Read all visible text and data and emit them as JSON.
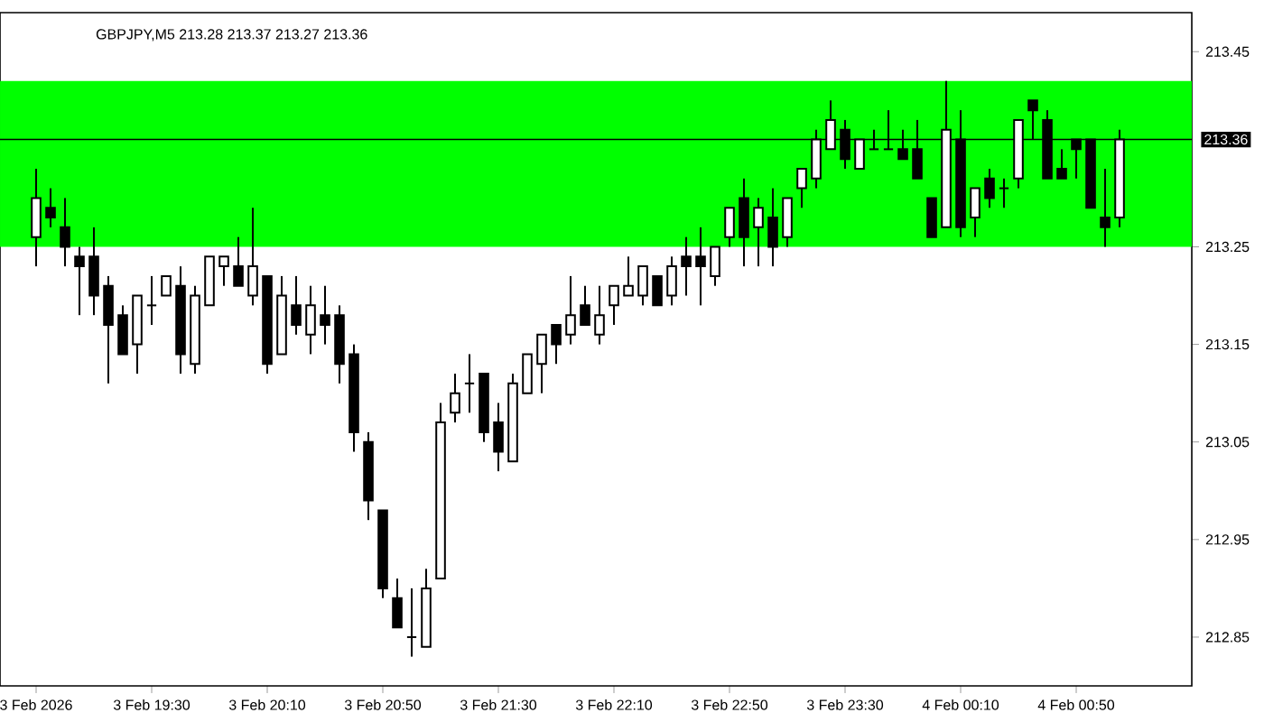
{
  "chart_data": {
    "type": "candlestick",
    "title": "GBPJPY,M5  213.28 213.37 213.27 213.36",
    "categories": [
      "3 Feb 2026",
      null,
      null,
      null,
      null,
      null,
      null,
      null,
      "3 Feb 19:30",
      null,
      null,
      null,
      null,
      null,
      null,
      null,
      "3 Feb 20:10",
      null,
      null,
      null,
      null,
      null,
      null,
      null,
      "3 Feb 20:50",
      null,
      null,
      null,
      null,
      null,
      null,
      null,
      "3 Feb 21:30",
      null,
      null,
      null,
      null,
      null,
      null,
      null,
      "3 Feb 22:10",
      null,
      null,
      null,
      null,
      null,
      null,
      null,
      "3 Feb 22:50",
      null,
      null,
      null,
      null,
      null,
      null,
      null,
      "3 Feb 23:30",
      null,
      null,
      null,
      null,
      null,
      null,
      null,
      "4 Feb 00:10",
      null,
      null,
      null,
      null,
      null,
      null,
      null,
      "4 Feb 00:50",
      null,
      null,
      null
    ],
    "ohlc": [
      [
        213.26,
        213.33,
        213.23,
        213.3
      ],
      [
        213.29,
        213.31,
        213.27,
        213.28
      ],
      [
        213.27,
        213.3,
        213.23,
        213.25
      ],
      [
        213.24,
        213.25,
        213.18,
        213.23
      ],
      [
        213.24,
        213.27,
        213.18,
        213.2
      ],
      [
        213.21,
        213.22,
        213.11,
        213.17
      ],
      [
        213.18,
        213.19,
        213.14,
        213.14
      ],
      [
        213.15,
        213.2,
        213.12,
        213.2
      ],
      [
        213.19,
        213.22,
        213.17,
        213.19
      ],
      [
        213.2,
        213.22,
        213.2,
        213.22
      ],
      [
        213.21,
        213.23,
        213.12,
        213.14
      ],
      [
        213.13,
        213.21,
        213.12,
        213.2
      ],
      [
        213.19,
        213.24,
        213.19,
        213.24
      ],
      [
        213.23,
        213.24,
        213.21,
        213.24
      ],
      [
        213.23,
        213.26,
        213.21,
        213.21
      ],
      [
        213.2,
        213.29,
        213.19,
        213.23
      ],
      [
        213.22,
        213.22,
        213.12,
        213.13
      ],
      [
        213.14,
        213.22,
        213.14,
        213.2
      ],
      [
        213.19,
        213.22,
        213.16,
        213.17
      ],
      [
        213.16,
        213.21,
        213.14,
        213.19
      ],
      [
        213.18,
        213.21,
        213.15,
        213.17
      ],
      [
        213.18,
        213.19,
        213.11,
        213.13
      ],
      [
        213.14,
        213.15,
        213.04,
        213.06
      ],
      [
        213.05,
        213.06,
        212.97,
        212.99
      ],
      [
        212.98,
        212.98,
        212.89,
        212.9
      ],
      [
        212.89,
        212.91,
        212.86,
        212.86
      ],
      [
        212.85,
        212.9,
        212.83,
        212.85
      ],
      [
        212.84,
        212.92,
        212.84,
        212.9
      ],
      [
        212.91,
        213.09,
        212.91,
        213.07
      ],
      [
        213.08,
        213.12,
        213.07,
        213.1
      ],
      [
        213.11,
        213.14,
        213.08,
        213.11
      ],
      [
        213.12,
        213.12,
        213.05,
        213.06
      ],
      [
        213.07,
        213.09,
        213.02,
        213.04
      ],
      [
        213.03,
        213.12,
        213.03,
        213.11
      ],
      [
        213.1,
        213.14,
        213.1,
        213.14
      ],
      [
        213.13,
        213.16,
        213.1,
        213.16
      ],
      [
        213.17,
        213.17,
        213.13,
        213.15
      ],
      [
        213.16,
        213.22,
        213.15,
        213.18
      ],
      [
        213.19,
        213.21,
        213.17,
        213.17
      ],
      [
        213.16,
        213.21,
        213.15,
        213.18
      ],
      [
        213.19,
        213.21,
        213.17,
        213.21
      ],
      [
        213.2,
        213.24,
        213.2,
        213.21
      ],
      [
        213.2,
        213.23,
        213.19,
        213.23
      ],
      [
        213.22,
        213.22,
        213.19,
        213.19
      ],
      [
        213.2,
        213.24,
        213.19,
        213.23
      ],
      [
        213.24,
        213.26,
        213.2,
        213.23
      ],
      [
        213.24,
        213.27,
        213.19,
        213.23
      ],
      [
        213.22,
        213.25,
        213.21,
        213.25
      ],
      [
        213.26,
        213.29,
        213.25,
        213.29
      ],
      [
        213.3,
        213.32,
        213.23,
        213.26
      ],
      [
        213.27,
        213.3,
        213.23,
        213.29
      ],
      [
        213.28,
        213.31,
        213.23,
        213.25
      ],
      [
        213.26,
        213.3,
        213.25,
        213.3
      ],
      [
        213.31,
        213.33,
        213.29,
        213.33
      ],
      [
        213.32,
        213.37,
        213.31,
        213.36
      ],
      [
        213.35,
        213.4,
        213.35,
        213.38
      ],
      [
        213.37,
        213.38,
        213.33,
        213.34
      ],
      [
        213.33,
        213.36,
        213.33,
        213.36
      ],
      [
        213.35,
        213.37,
        213.35,
        213.35
      ],
      [
        213.35,
        213.39,
        213.35,
        213.35
      ],
      [
        213.35,
        213.37,
        213.34,
        213.34
      ],
      [
        213.35,
        213.38,
        213.32,
        213.32
      ],
      [
        213.3,
        213.3,
        213.26,
        213.26
      ],
      [
        213.27,
        213.42,
        213.27,
        213.37
      ],
      [
        213.36,
        213.39,
        213.26,
        213.27
      ],
      [
        213.28,
        213.31,
        213.26,
        213.31
      ],
      [
        213.32,
        213.33,
        213.29,
        213.3
      ],
      [
        213.31,
        213.32,
        213.29,
        213.31
      ],
      [
        213.32,
        213.38,
        213.31,
        213.38
      ],
      [
        213.4,
        213.4,
        213.36,
        213.39
      ],
      [
        213.38,
        213.39,
        213.32,
        213.32
      ],
      [
        213.33,
        213.35,
        213.32,
        213.32
      ],
      [
        213.36,
        213.36,
        213.32,
        213.35
      ],
      [
        213.36,
        213.36,
        213.29,
        213.29
      ],
      [
        213.28,
        213.33,
        213.25,
        213.27
      ],
      [
        213.28,
        213.37,
        213.27,
        213.36
      ]
    ],
    "ylim": [
      212.8,
      213.49
    ],
    "yticks": [
      212.85,
      212.95,
      213.05,
      213.15,
      213.25,
      213.45
    ],
    "bands": [
      {
        "axis": "y",
        "from": 213.25,
        "to": 213.42,
        "color": "#00ff00"
      }
    ],
    "ref_lines": [
      {
        "axis": "y",
        "value": 213.36,
        "label": "213.36",
        "color": "#000000"
      }
    ]
  }
}
